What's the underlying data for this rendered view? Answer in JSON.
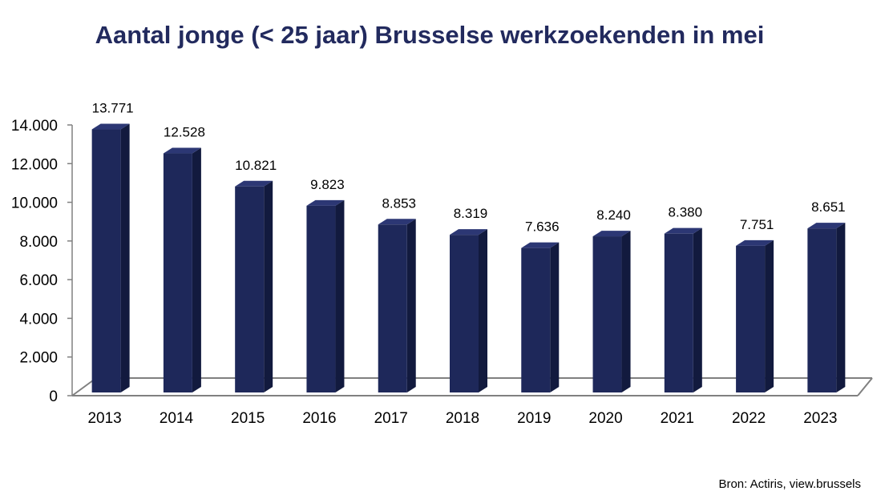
{
  "chart_data": {
    "type": "bar",
    "title": "Aantal jonge (< 25 jaar) Brusselse werkzoekenden in mei",
    "categories": [
      "2013",
      "2014",
      "2015",
      "2016",
      "2017",
      "2018",
      "2019",
      "2020",
      "2021",
      "2022",
      "2023"
    ],
    "values": [
      13771,
      12528,
      10821,
      9823,
      8853,
      8319,
      7636,
      8240,
      8380,
      7751,
      8651
    ],
    "value_labels": [
      "13.771",
      "12.528",
      "10.821",
      "9.823",
      "8.853",
      "8.319",
      "7.636",
      "8.240",
      "8.380",
      "7.751",
      "8.651"
    ],
    "y_ticks": [
      0,
      2000,
      4000,
      6000,
      8000,
      10000,
      12000,
      14000
    ],
    "y_tick_labels": [
      "0",
      "2.000",
      "4.000",
      "6.000",
      "8.000",
      "10.000",
      "12.000",
      "14.000"
    ],
    "ylim": [
      0,
      14000
    ],
    "xlabel": "",
    "ylabel": "",
    "grid": false,
    "style": "3d-column",
    "colors": {
      "bar_front": "#1e285a",
      "bar_top": "#2c3774",
      "bar_side": "#121a3e",
      "title": "#222a5e",
      "floor": "#808080"
    }
  },
  "source": "Bron: Actiris, view.brussels"
}
